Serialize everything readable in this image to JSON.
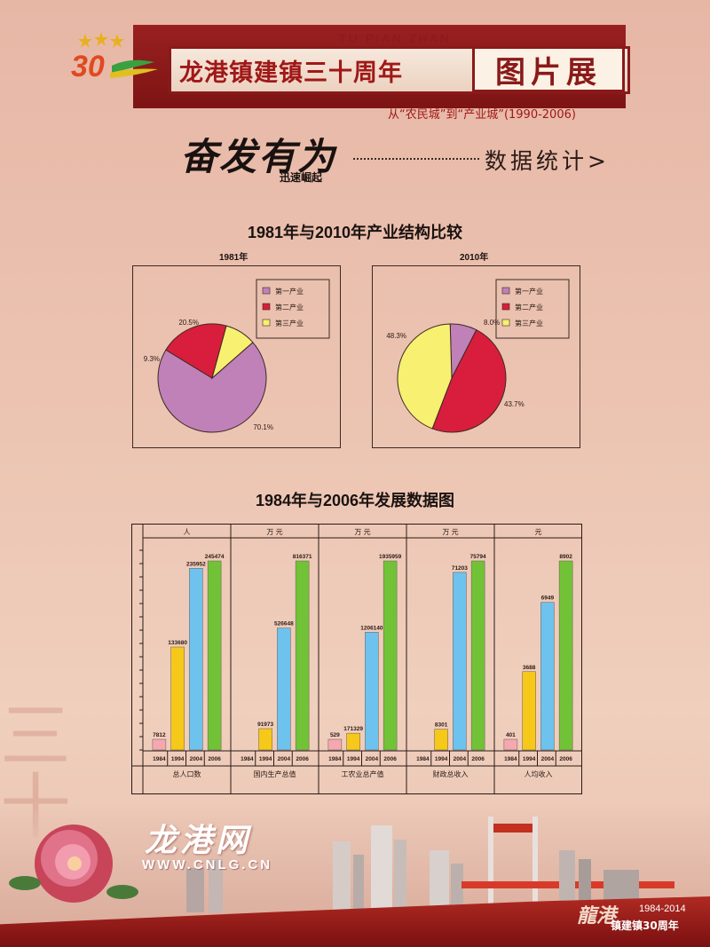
{
  "header": {
    "pinyin": "TU PIAN ZHAN",
    "title": "龙港镇建镇三十周年",
    "exhibit": "图片展",
    "subtitle": "从“农民城”到“产业城”(1990-2006)",
    "logo_number": "30"
  },
  "slogan": {
    "main": "奋发有为",
    "sub": "迅速崛起",
    "section": "数据统计>"
  },
  "colors": {
    "primary": "#c080b8",
    "secondary": "#d81e3c",
    "tertiary": "#f8f070",
    "bar_1984": "#f5a8b0",
    "bar_1994": "#f6c81a",
    "bar_2004": "#6ec2ee",
    "bar_2006": "#72c238"
  },
  "pie_section_title": "1981年与2010年产业结构比较",
  "bar_section_title": "1984年与2006年发展数据图",
  "chart_data": [
    {
      "type": "pie",
      "title": "1981年",
      "labels": [
        "第一产业",
        "第二产业",
        "第三产业"
      ],
      "values": [
        70.1,
        20.5,
        9.3
      ],
      "value_labels": [
        "70.1%",
        "20.5%",
        "9.3%"
      ],
      "legend": "top-right"
    },
    {
      "type": "pie",
      "title": "2010年",
      "labels": [
        "第一产业",
        "第二产业",
        "第三产业"
      ],
      "values": [
        8.0,
        48.3,
        43.7
      ],
      "value_labels": [
        "8.0%",
        "48.3%",
        "43.7%"
      ],
      "legend": "top-right"
    },
    {
      "type": "bar",
      "categories": [
        "1984",
        "1994",
        "2004",
        "2006"
      ],
      "groups": [
        {
          "name": "总人口数",
          "unit": "人",
          "values": [
            7812,
            133680,
            235952,
            245474
          ],
          "labels": [
            "7812",
            "133680",
            "235952",
            "245474"
          ]
        },
        {
          "name": "国内生产总值",
          "unit": "万 元",
          "values": [
            null,
            91973,
            526648,
            816371
          ],
          "labels": [
            "",
            "91973",
            "526648",
            "816371"
          ]
        },
        {
          "name": "工农业总产值",
          "unit": "万 元",
          "values": [
            529,
            171329,
            1206140,
            1935959
          ],
          "labels": [
            "529",
            "171329",
            "1206140",
            "1935959"
          ]
        },
        {
          "name": "财政总收入",
          "unit": "万 元",
          "values": [
            null,
            8301,
            71203,
            75794
          ],
          "labels": [
            "",
            "8301",
            "71203",
            "75794"
          ]
        },
        {
          "name": "人均收入",
          "unit": "元",
          "values": [
            401,
            3688,
            6949,
            8902
          ],
          "labels": [
            "401",
            "3688",
            "6949",
            "8902"
          ]
        }
      ]
    }
  ],
  "footer": {
    "site_logo": "龙港网",
    "site_url": "WWW.CNLG.CN",
    "anniv_mark": "龍港",
    "anniv_years": "1984-2014",
    "anniv_text": "镇建镇30周年"
  }
}
